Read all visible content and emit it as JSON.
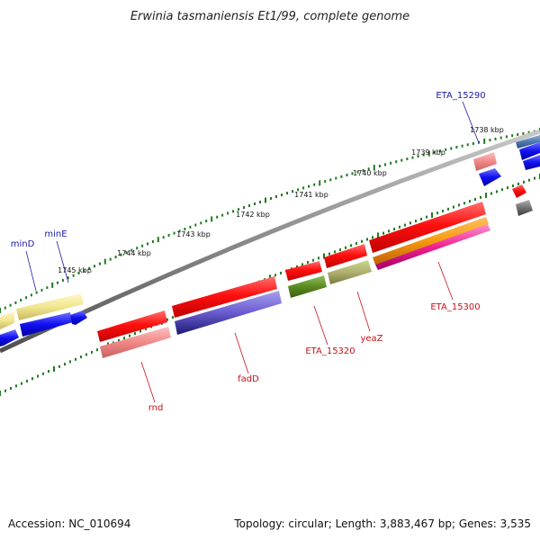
{
  "title": "Erwinia tasmaniensis Et1/99, complete genome",
  "footer": {
    "accession": "Accession: NC_010694",
    "summary": "Topology: circular; Length: 3,883,467 bp; Genes: 3,535"
  },
  "ticks": [
    "1745 kbp",
    "1744 kbp",
    "1743 kbp",
    "1742 kbp",
    "1741 kbp",
    "1740 kbp",
    "1739 kbp",
    "1738 kbp"
  ],
  "gene_labels_top": [
    "minD",
    "minE",
    "ETA_15290"
  ],
  "gene_labels_bottom": [
    "rnd",
    "fadD",
    "ETA_15320",
    "yeaZ",
    "ETA_15300"
  ],
  "colors": {
    "backbone": "#8a8a8a",
    "tick": "#1f7a1f",
    "cds_red": "#e81010",
    "cds_blue": "#1010e0",
    "label_blue": "#1a1aa8",
    "label_red": "#c4121a"
  }
}
